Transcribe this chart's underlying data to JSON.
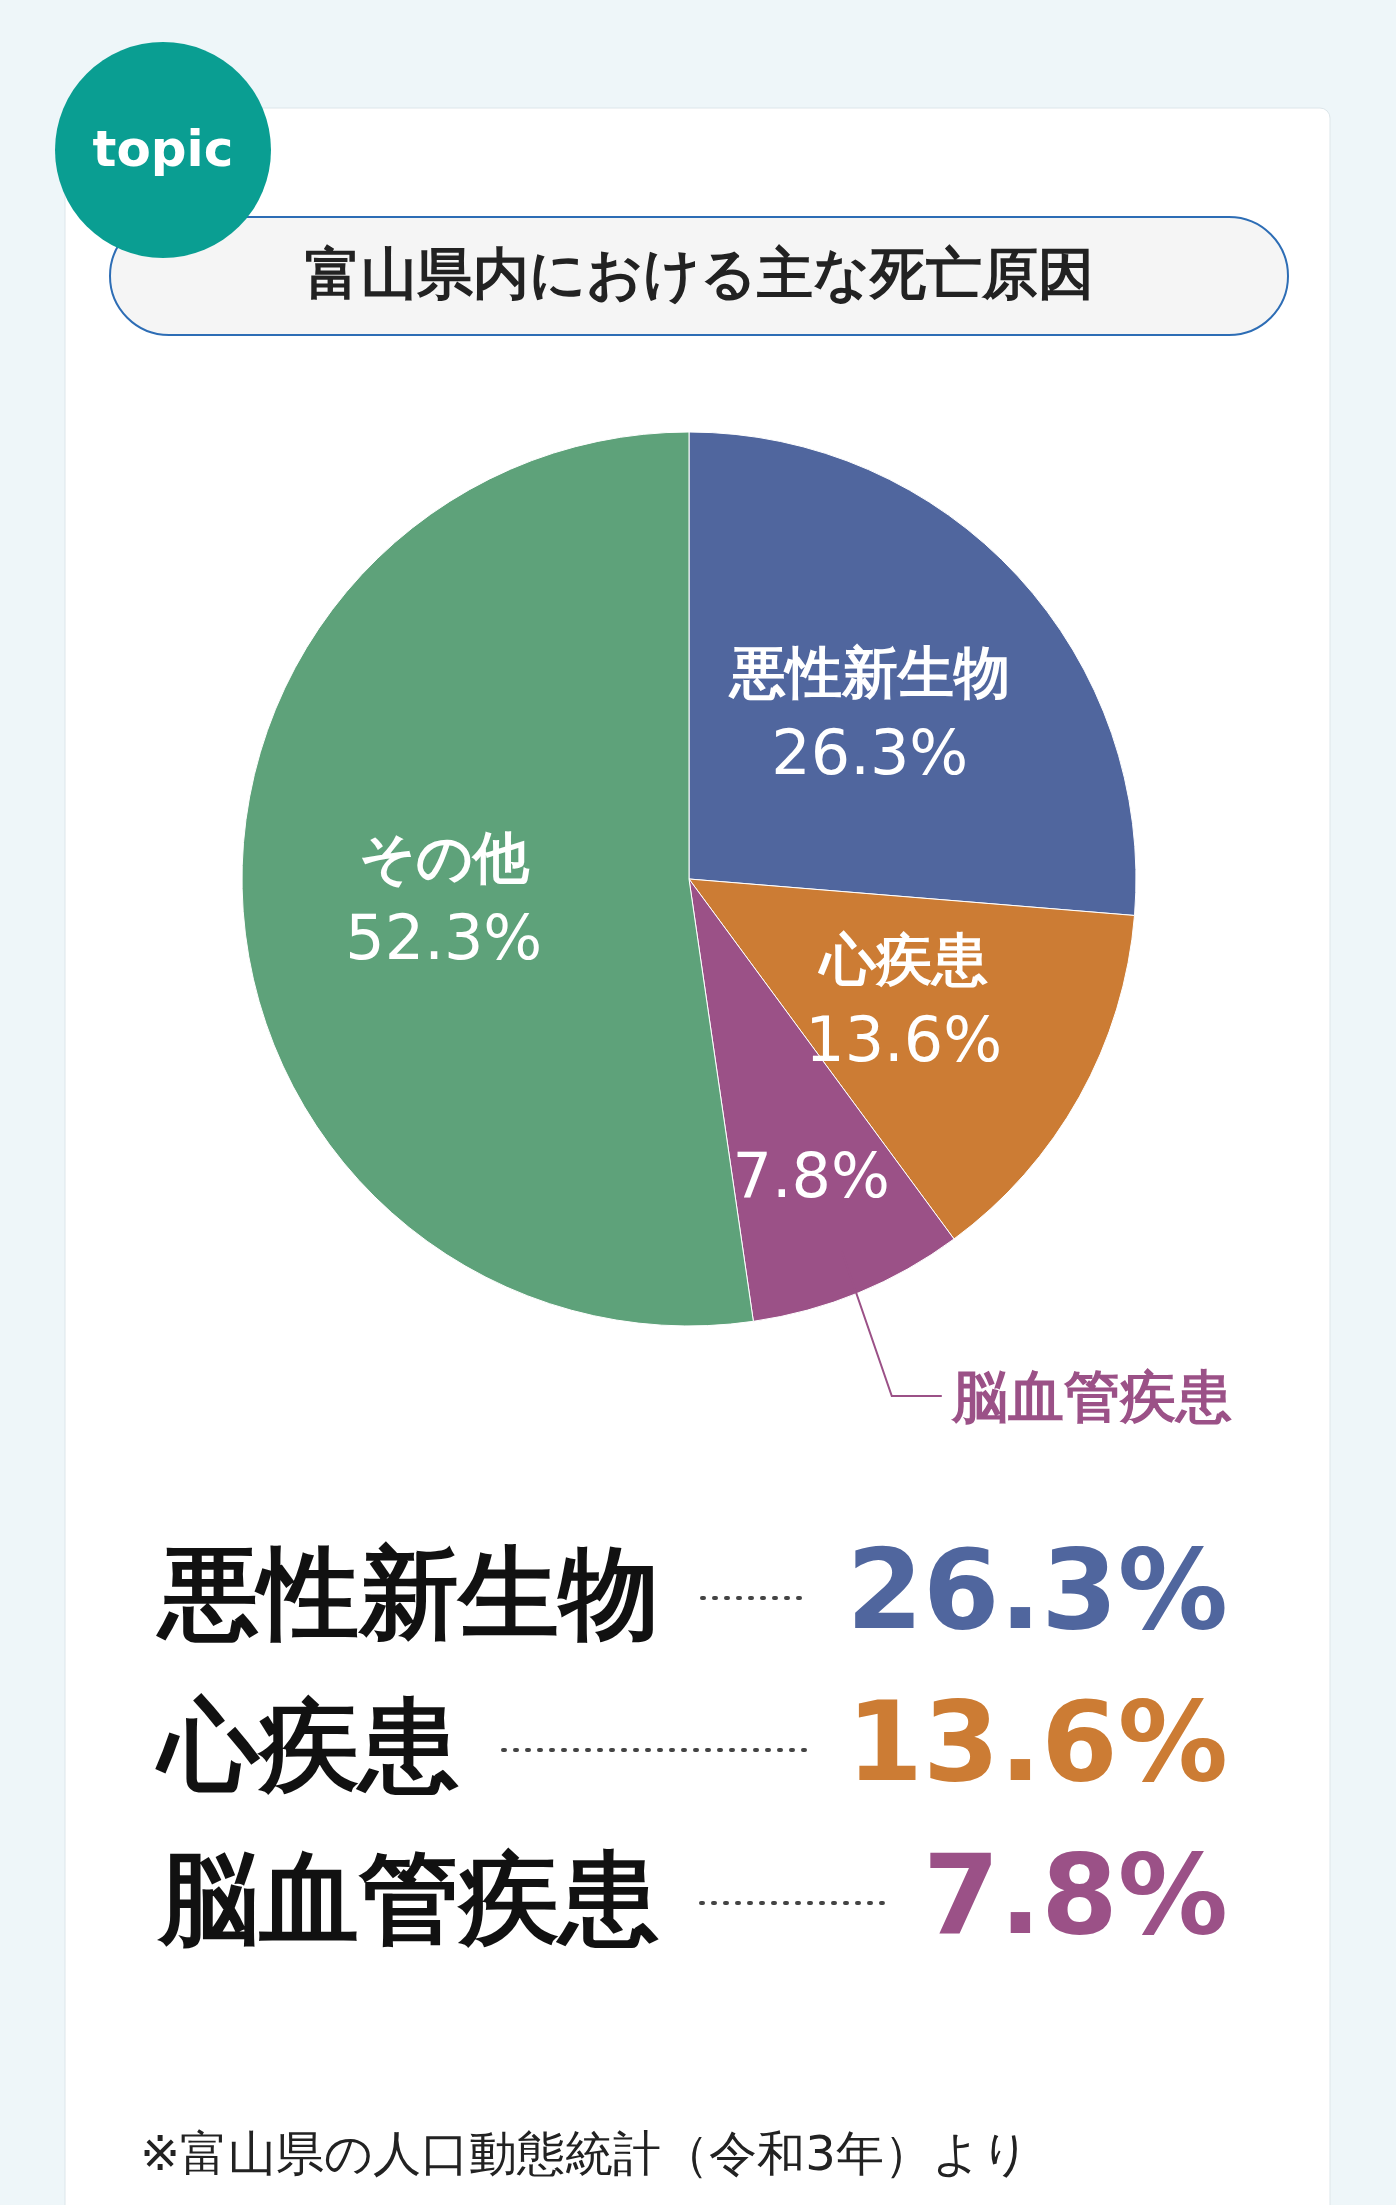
{
  "chart_data": {
    "type": "pie",
    "title": "富山県内における主な死亡原因",
    "categories": [
      "悪性新生物",
      "心疾患",
      "脳血管疾患",
      "その他"
    ],
    "values": [
      26.3,
      13.6,
      7.8,
      52.3
    ],
    "colors": [
      "#50669e",
      "#cc7c34",
      "#9b5187",
      "#5ea27a"
    ],
    "value_labels": [
      "26.3%",
      "13.6%",
      "7.8%",
      "52.3%"
    ],
    "annotations": [
      "topic",
      "※富山県の人口動態統計（令和3年）より"
    ]
  }
}
